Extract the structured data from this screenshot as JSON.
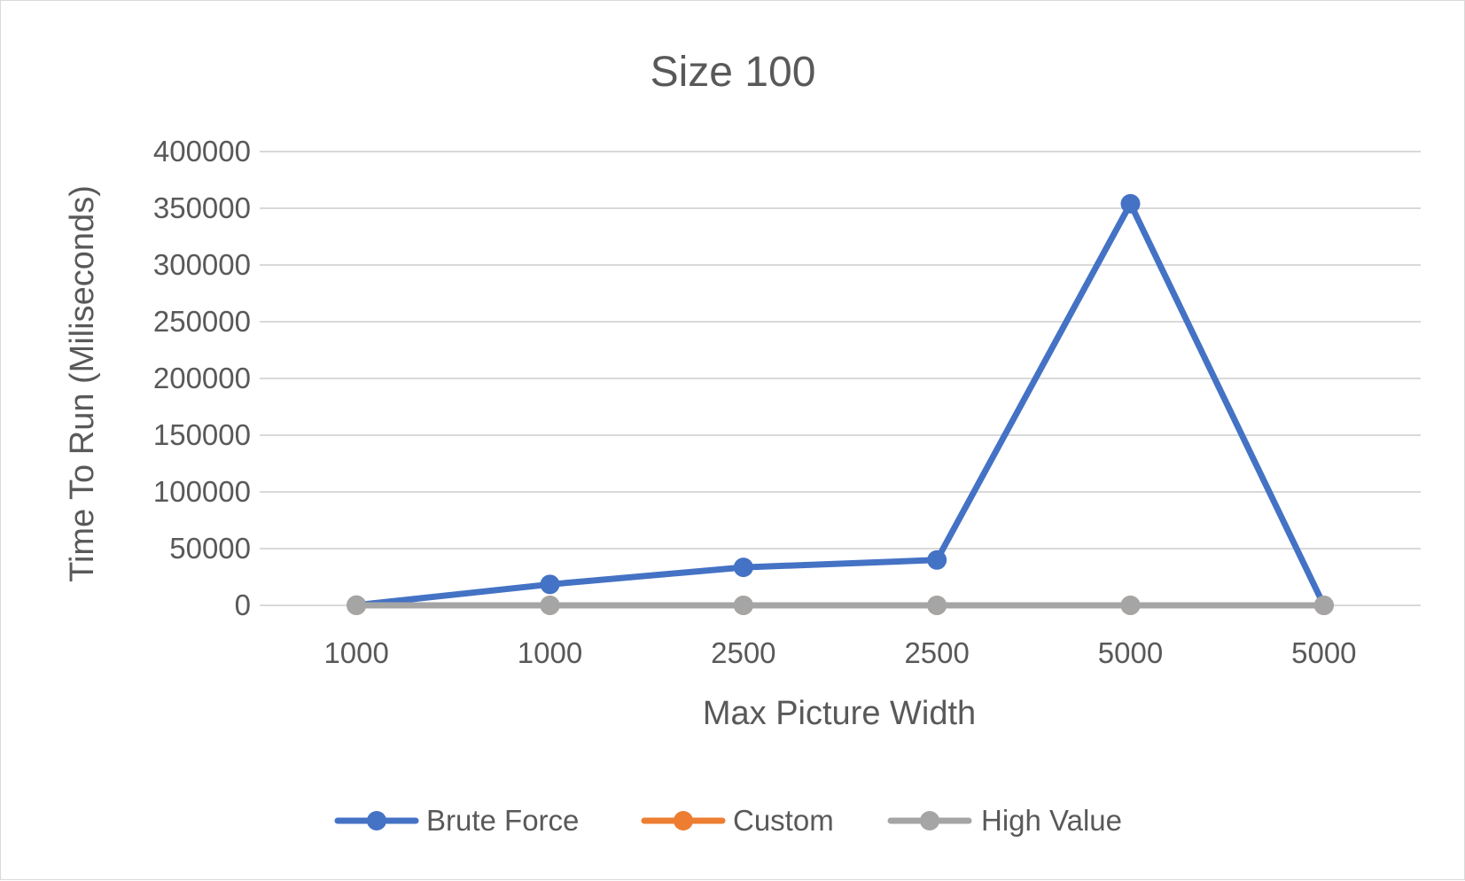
{
  "chart_data": {
    "type": "line",
    "title": "Size 100",
    "xlabel": "Max Picture Width",
    "ylabel": "Time To Run (Miliseconds)",
    "categories": [
      "1000",
      "1000",
      "2500",
      "2500",
      "5000",
      "5000"
    ],
    "ylim": [
      0,
      400000
    ],
    "yticks": [
      "0",
      "50000",
      "100000",
      "150000",
      "200000",
      "250000",
      "300000",
      "350000",
      "400000"
    ],
    "grid": true,
    "legend_position": "bottom",
    "series": [
      {
        "name": "Brute Force",
        "color": "#4472C4",
        "values": [
          200,
          18500,
          33500,
          40000,
          354000,
          0
        ]
      },
      {
        "name": "Custom",
        "color": "#ED7D31",
        "values": [
          0,
          0,
          0,
          0,
          0,
          0
        ]
      },
      {
        "name": "High Value",
        "color": "#A5A5A5",
        "values": [
          0,
          0,
          0,
          0,
          0,
          0
        ]
      }
    ]
  }
}
